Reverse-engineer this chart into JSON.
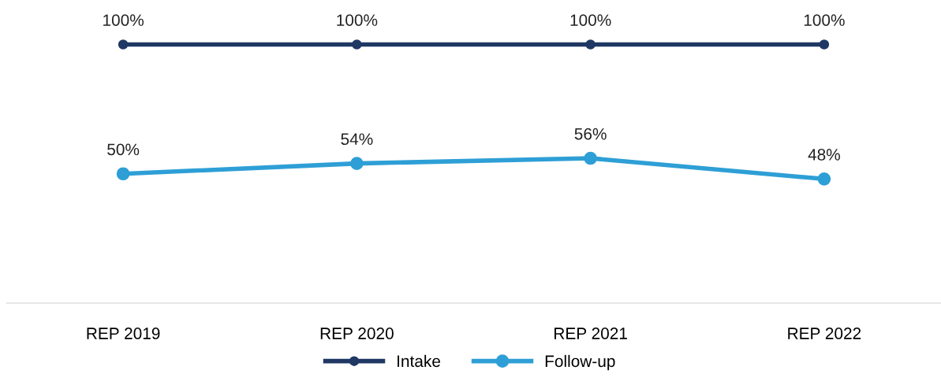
{
  "chart_data": {
    "type": "line",
    "categories": [
      "REP 2019",
      "REP 2020",
      "REP 2021",
      "REP 2022"
    ],
    "series": [
      {
        "name": "Intake",
        "color": "#1f3864",
        "values": [
          100,
          100,
          100,
          100
        ],
        "value_labels": [
          "100%",
          "100%",
          "100%",
          "100%"
        ]
      },
      {
        "name": "Follow-up",
        "color": "#2e9fd6",
        "values": [
          50,
          54,
          56,
          48
        ],
        "value_labels": [
          "50%",
          "54%",
          "56%",
          "48%"
        ]
      }
    ],
    "marker": "circle",
    "line_style": "solid",
    "grid": false,
    "legend": "bottom",
    "tick_labels": "x"
  }
}
